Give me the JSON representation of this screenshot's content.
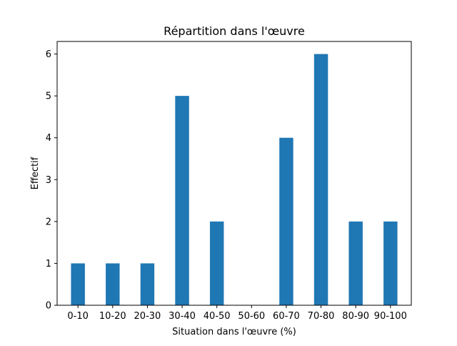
{
  "chart_data": {
    "type": "bar",
    "title": "Répartition dans l'œuvre",
    "xlabel": "Situation dans l'œuvre (%)",
    "ylabel": "Effectif",
    "categories": [
      "0-10",
      "10-20",
      "20-30",
      "30-40",
      "40-50",
      "50-60",
      "60-70",
      "70-80",
      "80-90",
      "90-100"
    ],
    "values": [
      1,
      1,
      1,
      5,
      2,
      0,
      4,
      6,
      2,
      2
    ],
    "ylim": [
      0,
      6.3
    ],
    "yticks": [
      0,
      1,
      2,
      3,
      4,
      5,
      6
    ],
    "grid": false,
    "colors": {
      "bar": "#1f77b4"
    }
  }
}
